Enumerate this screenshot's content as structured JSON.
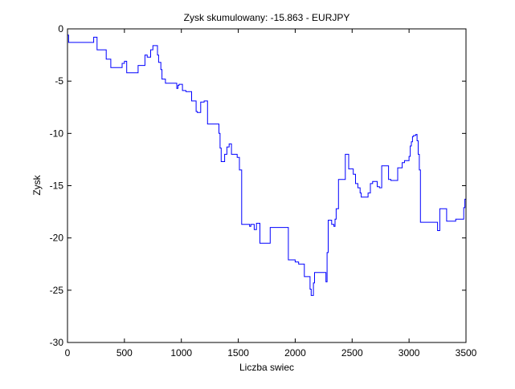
{
  "chart_data": {
    "type": "line",
    "title": "Zysk skumulowany: -15.863 - EURJPY",
    "xlabel": "Liczba swiec",
    "ylabel": "Zysk",
    "xlim": [
      0,
      3500
    ],
    "ylim": [
      -30,
      0
    ],
    "xticks": [
      0,
      500,
      1000,
      1500,
      2000,
      2500,
      3000,
      3500
    ],
    "yticks": [
      0,
      -5,
      -10,
      -15,
      -20,
      -25,
      -30
    ],
    "grid": false,
    "line_color": "#0000ff",
    "series": [
      {
        "x": [
          0,
          10,
          140,
          230,
          260,
          340,
          380,
          480,
          500,
          520,
          620,
          680,
          700,
          730,
          750,
          790,
          800,
          820,
          830,
          860,
          940,
          960,
          970,
          980,
          1010,
          1040,
          1070,
          1090,
          1130,
          1140,
          1170,
          1200,
          1230,
          1270,
          1330,
          1340,
          1350,
          1370,
          1380,
          1400,
          1420,
          1440,
          1460,
          1490,
          1510,
          1530,
          1560,
          1600,
          1610,
          1640,
          1660,
          1670,
          1690,
          1770,
          1780,
          1800,
          1810,
          1850,
          1860,
          1900,
          1910,
          1940,
          1990,
          2000,
          2020,
          2030,
          2080,
          2090,
          2110,
          2120,
          2130,
          2140,
          2150,
          2160,
          2170,
          2180,
          2200,
          2230,
          2260,
          2270,
          2280,
          2290,
          2300,
          2320,
          2330,
          2340,
          2350,
          2360,
          2370,
          2380,
          2390,
          2400,
          2410,
          2420,
          2440,
          2450,
          2470,
          2490,
          2500,
          2510,
          2520,
          2530,
          2550,
          2570,
          2580,
          2600,
          2630,
          2640,
          2660,
          2680,
          2700,
          2720,
          2730,
          2740,
          2760,
          2790,
          2800,
          2820,
          2840,
          2860,
          2880,
          2900,
          2920,
          2940,
          2960,
          2980,
          3000,
          3010,
          3020,
          3030,
          3040,
          3060,
          3070,
          3080,
          3090,
          3100,
          3120,
          3190,
          3220,
          3250,
          3270,
          3290,
          3310,
          3330,
          3370,
          3390,
          3410,
          3460,
          3480,
          3490,
          3500
        ],
        "y": [
          -0.6,
          -1.3,
          -1.3,
          -0.8,
          -2.0,
          -2.9,
          -3.7,
          -3.3,
          -3.1,
          -4.2,
          -3.5,
          -2.5,
          -2.7,
          -2.0,
          -1.6,
          -2.5,
          -3.2,
          -3.9,
          -4.8,
          -5.2,
          -5.2,
          -5.7,
          -5.4,
          -5.3,
          -5.9,
          -6.0,
          -6.0,
          -6.9,
          -7.9,
          -8.0,
          -7.0,
          -6.9,
          -9.1,
          -9.1,
          -10.0,
          -11.4,
          -12.7,
          -12.7,
          -12.0,
          -11.3,
          -11.0,
          -12.0,
          -12.0,
          -12.3,
          -13.5,
          -18.7,
          -18.7,
          -18.9,
          -18.7,
          -19.2,
          -18.6,
          -18.6,
          -20.5,
          -20.5,
          -19.0,
          -19.0,
          -19.0,
          -19.0,
          -19.0,
          -19.0,
          -19.0,
          -22.1,
          -22.1,
          -22.3,
          -22.3,
          -22.5,
          -23.7,
          -23.7,
          -23.7,
          -23.7,
          -24.9,
          -25.5,
          -25.5,
          -24.3,
          -23.3,
          -23.3,
          -23.3,
          -23.3,
          -23.3,
          -24.2,
          -21.4,
          -18.3,
          -18.3,
          -18.7,
          -18.7,
          -18.9,
          -18.2,
          -17.2,
          -17.2,
          -14.4,
          -14.4,
          -14.4,
          -14.4,
          -14.4,
          -12.0,
          -12.0,
          -13.4,
          -13.4,
          -13.4,
          -13.9,
          -13.9,
          -14.8,
          -15.2,
          -15.7,
          -16.1,
          -16.1,
          -16.1,
          -15.7,
          -14.8,
          -14.6,
          -14.6,
          -15.1,
          -15.1,
          -15.2,
          -13.1,
          -13.1,
          -13.1,
          -14.4,
          -14.5,
          -14.5,
          -14.5,
          -13.3,
          -13.3,
          -12.8,
          -12.6,
          -12.6,
          -12.2,
          -11.2,
          -10.8,
          -10.3,
          -10.2,
          -10.1,
          -10.7,
          -12.0,
          -13.5,
          -18.5,
          -18.5,
          -18.5,
          -18.5,
          -19.3,
          -17.2,
          -17.2,
          -17.2,
          -18.4,
          -18.4,
          -18.4,
          -18.2,
          -18.2,
          -17.1,
          -16.3,
          -15.9
        ]
      }
    ]
  }
}
